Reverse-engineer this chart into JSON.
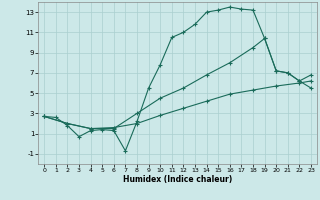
{
  "xlabel": "Humidex (Indice chaleur)",
  "ylabel": "",
  "bg_color": "#cce8e8",
  "grid_color": "#aacfcf",
  "line_color": "#1a6b5a",
  "xlim": [
    -0.5,
    23.5
  ],
  "ylim": [
    -2,
    14
  ],
  "xticks": [
    0,
    1,
    2,
    3,
    4,
    5,
    6,
    7,
    8,
    9,
    10,
    11,
    12,
    13,
    14,
    15,
    16,
    17,
    18,
    19,
    20,
    21,
    22,
    23
  ],
  "yticks": [
    -1,
    1,
    3,
    5,
    7,
    9,
    11,
    13
  ],
  "line1": {
    "x": [
      0,
      1,
      2,
      3,
      4,
      5,
      6,
      7,
      8,
      9,
      10,
      11,
      12,
      13,
      14,
      15,
      16,
      17,
      18,
      19,
      20,
      21,
      22,
      23
    ],
    "y": [
      2.7,
      2.6,
      1.8,
      0.7,
      1.3,
      1.4,
      1.3,
      -0.7,
      2.2,
      5.5,
      7.8,
      10.5,
      11.0,
      11.8,
      13.0,
      13.2,
      13.5,
      13.3,
      13.2,
      10.4,
      7.2,
      7.0,
      6.2,
      5.5
    ]
  },
  "line2": {
    "x": [
      0,
      2,
      4,
      6,
      8,
      10,
      12,
      14,
      16,
      18,
      19,
      20,
      21,
      22,
      23
    ],
    "y": [
      2.7,
      2.0,
      1.5,
      1.5,
      3.0,
      4.5,
      5.5,
      6.8,
      8.0,
      9.5,
      10.4,
      7.2,
      7.0,
      6.2,
      6.8
    ]
  },
  "line3": {
    "x": [
      0,
      2,
      4,
      6,
      8,
      10,
      12,
      14,
      16,
      18,
      20,
      22,
      23
    ],
    "y": [
      2.7,
      2.0,
      1.5,
      1.6,
      2.0,
      2.8,
      3.5,
      4.2,
      4.9,
      5.3,
      5.7,
      6.0,
      6.2
    ]
  }
}
